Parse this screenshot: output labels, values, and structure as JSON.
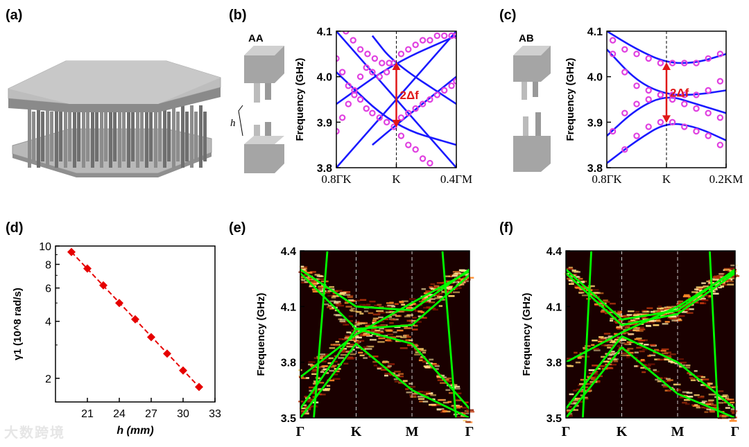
{
  "panels": {
    "a": {
      "label": "(a)"
    },
    "b": {
      "label": "(b)",
      "inset_label": "AA",
      "h_label": "h",
      "gap_label": "2Δf"
    },
    "c": {
      "label": "(c)",
      "inset_label": "AB",
      "gap_label": "2Δf"
    },
    "d": {
      "label": "(d)"
    },
    "e": {
      "label": "(e)"
    },
    "f": {
      "label": "(f)"
    }
  },
  "colors": {
    "model": "#1a1aff",
    "data": "#e040e0",
    "arrow": "#e01818",
    "marker": "#e60000",
    "fit": "#00ff00"
  },
  "watermark": "大数跨境",
  "chart_data": [
    {
      "id": "b",
      "type": "line",
      "ylabel": "Frequency (GHz)",
      "ylim": [
        3.8,
        4.1
      ],
      "yticks": [
        "3.8",
        "3.9",
        "4.0",
        "4.1"
      ],
      "xticks": [
        "0.8ΓK",
        "K",
        "0.4ΓM"
      ],
      "series": [
        {
          "kind": "model",
          "x": [
            0,
            1
          ],
          "y": [
            3.8,
            4.1
          ]
        },
        {
          "kind": "model",
          "x": [
            0,
            1
          ],
          "y": [
            4.1,
            3.8
          ]
        },
        {
          "kind": "model",
          "x": [
            0,
            0.48,
            1
          ],
          "y": [
            4.01,
            3.89,
            3.85
          ]
        },
        {
          "kind": "model",
          "x": [
            0,
            0.48,
            1
          ],
          "y": [
            3.94,
            4.03,
            4.09
          ]
        },
        {
          "kind": "model",
          "x": [
            0.3,
            0.48,
            1
          ],
          "y": [
            3.85,
            3.89,
            4.0
          ]
        },
        {
          "kind": "model",
          "x": [
            0.3,
            0.48,
            1
          ],
          "y": [
            4.09,
            4.03,
            3.94
          ]
        },
        {
          "kind": "data",
          "x": [
            0.0,
            0.05,
            0.1,
            0.15,
            0.2,
            0.25,
            0.3,
            0.36,
            0.42,
            0.48,
            0.54,
            0.6,
            0.66,
            0.72,
            0.78,
            0.84,
            0.9,
            0.96,
            1.0
          ],
          "y": [
            3.88,
            3.91,
            3.94,
            3.97,
            4.0,
            4.02,
            4.01,
            4.0,
            4.01,
            4.03,
            4.05,
            4.06,
            4.07,
            4.08,
            4.08,
            4.09,
            4.09,
            4.09,
            4.09
          ]
        },
        {
          "kind": "data",
          "x": [
            0.0,
            0.05,
            0.1,
            0.15,
            0.2,
            0.25,
            0.3,
            0.36,
            0.42,
            0.48,
            0.54,
            0.6,
            0.66,
            0.72,
            0.78,
            0.84,
            0.9,
            0.96,
            1.0
          ],
          "y": [
            4.04,
            4.01,
            3.98,
            3.96,
            3.95,
            3.93,
            3.92,
            3.91,
            3.9,
            3.89,
            3.91,
            3.92,
            3.93,
            3.94,
            3.95,
            3.96,
            3.97,
            3.98,
            3.99
          ]
        },
        {
          "kind": "data",
          "x": [
            0.08,
            0.14,
            0.2,
            0.26,
            0.32,
            0.38,
            0.44,
            0.54,
            0.6,
            0.66,
            0.72,
            0.78
          ],
          "y": [
            4.1,
            4.08,
            4.06,
            4.05,
            4.04,
            4.03,
            4.03,
            3.87,
            3.85,
            3.84,
            3.82,
            3.81
          ]
        }
      ]
    },
    {
      "id": "c",
      "type": "line",
      "ylabel": "Frequency (GHz)",
      "ylim": [
        3.8,
        4.1
      ],
      "yticks": [
        "3.8",
        "3.9",
        "4.0",
        "4.1"
      ],
      "xticks": [
        "0.8ΓK",
        "K",
        "0.2KM"
      ],
      "series": [
        {
          "kind": "model",
          "x": [
            0,
            0.25,
            0.5,
            0.75,
            1
          ],
          "y": [
            4.1,
            4.06,
            4.03,
            4.03,
            4.05
          ]
        },
        {
          "kind": "model",
          "x": [
            0,
            0.25,
            0.5,
            0.75,
            1
          ],
          "y": [
            4.06,
            3.99,
            3.96,
            3.96,
            3.97
          ]
        },
        {
          "kind": "model",
          "x": [
            0,
            0.25,
            0.5,
            0.75,
            1
          ],
          "y": [
            3.87,
            3.93,
            3.96,
            3.94,
            3.92
          ]
        },
        {
          "kind": "model",
          "x": [
            0,
            0.25,
            0.5,
            0.75,
            1
          ],
          "y": [
            3.81,
            3.86,
            3.9,
            3.89,
            3.86
          ]
        },
        {
          "kind": "data",
          "x": [
            0.05,
            0.15,
            0.25,
            0.35,
            0.45,
            0.55,
            0.65,
            0.75,
            0.85,
            0.95
          ],
          "y": [
            4.08,
            4.06,
            4.05,
            4.04,
            4.03,
            4.03,
            4.03,
            4.03,
            4.04,
            4.05
          ]
        },
        {
          "kind": "data",
          "x": [
            0.05,
            0.15,
            0.25,
            0.35,
            0.45,
            0.55,
            0.65,
            0.75,
            0.85,
            0.95
          ],
          "y": [
            4.05,
            4.01,
            3.98,
            3.97,
            3.96,
            3.96,
            3.96,
            3.96,
            3.97,
            3.99
          ]
        },
        {
          "kind": "data",
          "x": [
            0.05,
            0.15,
            0.25,
            0.35,
            0.45,
            0.55,
            0.65,
            0.75,
            0.85,
            0.95
          ],
          "y": [
            3.88,
            3.92,
            3.94,
            3.95,
            3.96,
            3.95,
            3.94,
            3.93,
            3.92,
            3.91
          ]
        },
        {
          "kind": "data",
          "x": [
            0.15,
            0.25,
            0.35,
            0.45,
            0.55,
            0.65,
            0.75,
            0.85,
            0.95
          ],
          "y": [
            3.84,
            3.87,
            3.89,
            3.9,
            3.9,
            3.89,
            3.88,
            3.87,
            3.85
          ]
        }
      ]
    },
    {
      "id": "d",
      "type": "scatter",
      "xlabel": "h (mm)",
      "ylabel": "γ1 (10^8 rad/s)",
      "xlim": [
        18,
        33
      ],
      "ylim": [
        1.5,
        10
      ],
      "yscale": "log",
      "xticks": [
        "21",
        "24",
        "27",
        "30",
        "33"
      ],
      "yticks": [
        "2",
        "4",
        "6",
        "8",
        "10"
      ],
      "x": [
        19.5,
        21.0,
        22.5,
        24.0,
        25.5,
        27.0,
        28.5,
        30.0,
        31.5
      ],
      "y": [
        9.3,
        7.6,
        6.2,
        5.0,
        4.1,
        3.3,
        2.7,
        2.2,
        1.8
      ]
    },
    {
      "id": "e",
      "type": "heatmap",
      "ylabel": "Frequency (GHz)",
      "ylim": [
        3.5,
        4.4
      ],
      "yticks": [
        "3.5",
        "3.8",
        "4.1",
        "4.4"
      ],
      "xticks": [
        "Γ",
        "K",
        "M",
        "Γ"
      ],
      "bands": [
        {
          "x": [
            0,
            0.33,
            0.66,
            1
          ],
          "y": [
            4.3,
            4.1,
            4.08,
            4.3
          ]
        },
        {
          "x": [
            0,
            0.33,
            0.66,
            1
          ],
          "y": [
            4.28,
            3.98,
            4.0,
            4.27
          ]
        },
        {
          "x": [
            0,
            0.33,
            0.66,
            1
          ],
          "y": [
            3.72,
            3.95,
            4.12,
            4.29
          ]
        },
        {
          "x": [
            0,
            0.33,
            0.66,
            1
          ],
          "y": [
            3.55,
            3.98,
            3.9,
            3.55
          ]
        },
        {
          "x": [
            0,
            0.33,
            0.66,
            1
          ],
          "y": [
            3.5,
            3.9,
            3.65,
            3.5
          ]
        },
        {
          "x": [
            0.08,
            0.16
          ],
          "y": [
            3.5,
            4.4
          ]
        },
        {
          "x": [
            0.84,
            0.92
          ],
          "y": [
            4.4,
            3.5
          ]
        }
      ]
    },
    {
      "id": "f",
      "type": "heatmap",
      "ylabel": "Frequency (GHz)",
      "ylim": [
        3.5,
        4.4
      ],
      "yticks": [
        "3.5",
        "3.8",
        "4.1",
        "4.4"
      ],
      "xticks": [
        "Γ",
        "K",
        "M",
        "Γ"
      ],
      "bands": [
        {
          "x": [
            0,
            0.33,
            0.66,
            1
          ],
          "y": [
            4.3,
            4.03,
            4.08,
            4.3
          ]
        },
        {
          "x": [
            0,
            0.33,
            0.66,
            1
          ],
          "y": [
            4.28,
            4.0,
            4.06,
            4.28
          ]
        },
        {
          "x": [
            0,
            0.33,
            0.66,
            1
          ],
          "y": [
            3.8,
            3.96,
            4.1,
            4.29
          ]
        },
        {
          "x": [
            0,
            0.33,
            0.66,
            1
          ],
          "y": [
            3.55,
            3.94,
            3.8,
            3.55
          ]
        },
        {
          "x": [
            0,
            0.33,
            0.66,
            1
          ],
          "y": [
            3.5,
            3.88,
            3.63,
            3.5
          ]
        },
        {
          "x": [
            0.1,
            0.15
          ],
          "y": [
            3.5,
            4.4
          ]
        },
        {
          "x": [
            0.85,
            0.9
          ],
          "y": [
            4.4,
            3.5
          ]
        }
      ]
    }
  ]
}
